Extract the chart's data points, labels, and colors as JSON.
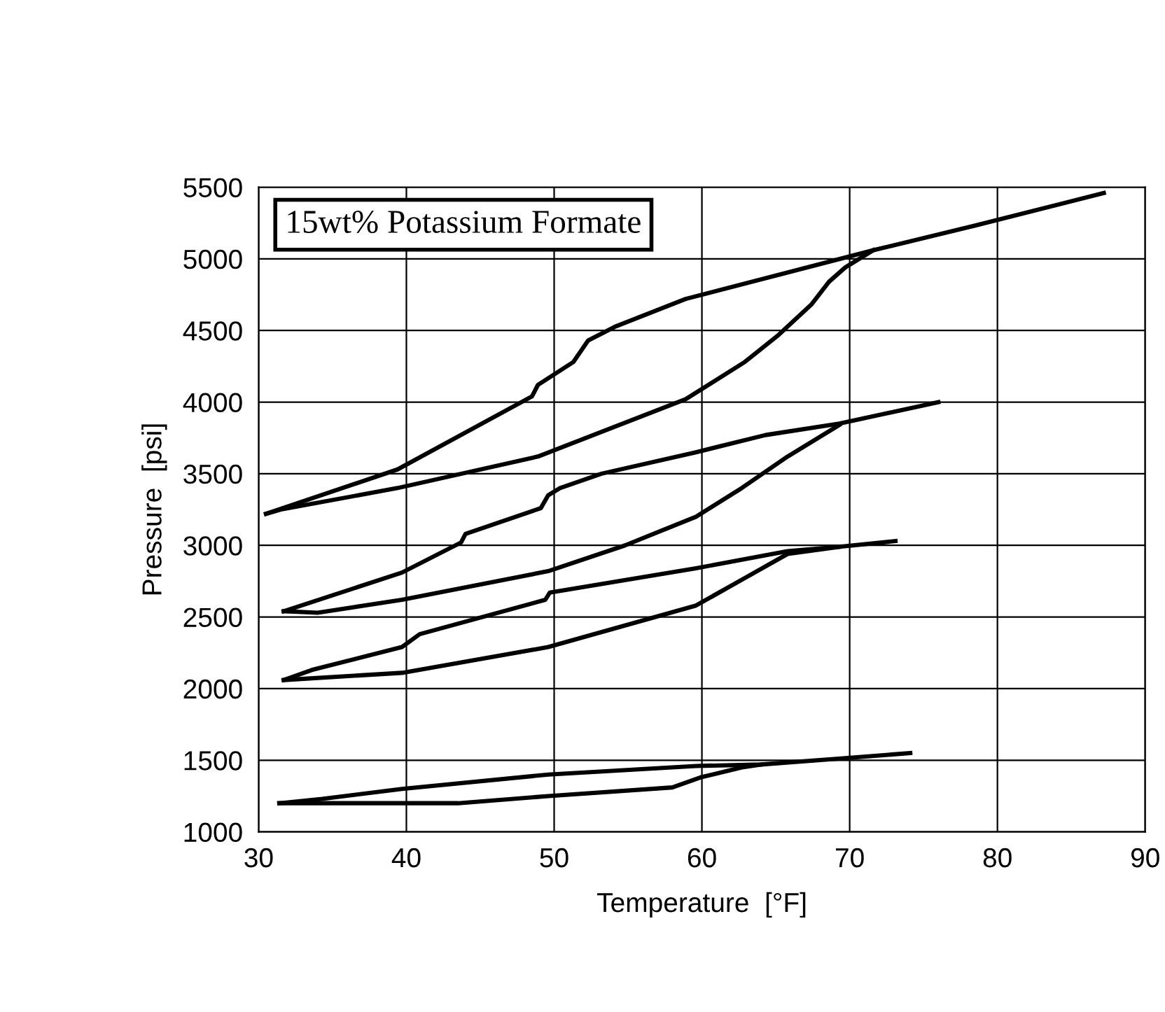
{
  "chart_data": {
    "type": "line",
    "xlabel": "Temperature  [°F]",
    "ylabel": "Pressure  [psi]",
    "annotations": [
      "15wt% Potassium Formate"
    ],
    "xlim": [
      30,
      90
    ],
    "xticks": [
      30,
      40,
      50,
      60,
      70,
      80,
      90
    ],
    "ylim": [
      1000,
      5500
    ],
    "yticks": [
      1000,
      1500,
      2000,
      2500,
      3000,
      3500,
      4000,
      4500,
      5000,
      5500
    ],
    "grid": true,
    "marker": "none",
    "line_style": "solid",
    "series": [
      {
        "color": "#000000",
        "x": [
          30.5,
          31.5,
          39.4,
          48.9,
          58.9,
          62.9,
          65.2,
          67.4,
          68.6,
          69.7,
          71.6
        ],
        "values": [
          3220,
          3250,
          3400,
          3620,
          4020,
          4280,
          4470,
          4680,
          4840,
          4940,
          5060
        ]
      },
      {
        "color": "#000000",
        "x": [
          30.5,
          39.4,
          48.5,
          48.9,
          51.3,
          52.3,
          54.2,
          58.9,
          68.6,
          71.6,
          78.4,
          87.2
        ],
        "values": [
          3220,
          3530,
          4040,
          4120,
          4280,
          4430,
          4530,
          4720,
          4980,
          5060,
          5230,
          5460
        ]
      },
      {
        "color": "#000000",
        "x": [
          31.7,
          34,
          39.7,
          49.6,
          54.8,
          59.6,
          62.7,
          65.8,
          69.3
        ],
        "values": [
          2540,
          2530,
          2620,
          2820,
          3000,
          3200,
          3400,
          3620,
          3840
        ]
      },
      {
        "color": "#000000",
        "x": [
          31.7,
          39.7,
          43.7,
          44,
          49.1,
          49.6,
          50.4,
          53.2,
          59.6,
          64.3,
          69.3,
          76
        ],
        "values": [
          2540,
          2810,
          3020,
          3080,
          3260,
          3350,
          3400,
          3500,
          3650,
          3770,
          3850,
          4000
        ]
      },
      {
        "color": "#000000",
        "x": [
          31.7,
          39.7,
          49.6,
          59.6,
          62.7,
          65.8,
          69.3
        ],
        "values": [
          2060,
          2110,
          2290,
          2580,
          2760,
          2940,
          2990
        ]
      },
      {
        "color": "#000000",
        "x": [
          31.7,
          33.6,
          39.7,
          40.9,
          49.4,
          49.7,
          59.6,
          65.8,
          69.3,
          73.1
        ],
        "values": [
          2060,
          2130,
          2290,
          2380,
          2620,
          2670,
          2840,
          2960,
          2990,
          3030
        ]
      },
      {
        "color": "#000000",
        "x": [
          31.4,
          43.5,
          49.6,
          58.0,
          59.9,
          62.7,
          64
        ],
        "values": [
          1200,
          1200,
          1250,
          1310,
          1380,
          1450,
          1470
        ]
      },
      {
        "color": "#000000",
        "x": [
          31.4,
          34.3,
          39.7,
          49.6,
          59.6,
          64,
          69.1,
          74.1
        ],
        "values": [
          1200,
          1230,
          1300,
          1400,
          1460,
          1470,
          1510,
          1550
        ]
      }
    ]
  }
}
